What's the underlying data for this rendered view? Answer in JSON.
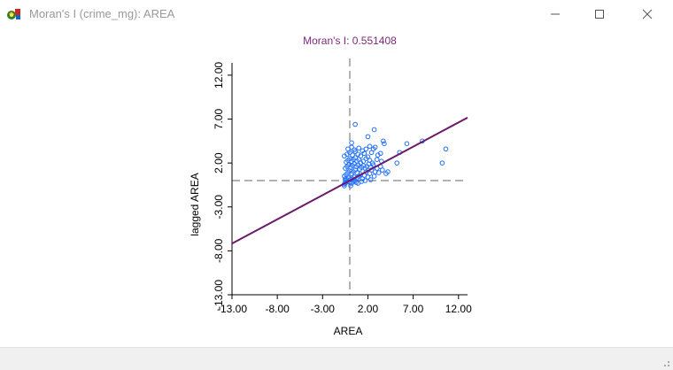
{
  "window": {
    "title": "Moran's I (crime_mg): AREA",
    "controls": [
      "minimize",
      "maximize",
      "close"
    ]
  },
  "colors": {
    "title": "#7a2a7a",
    "regression_line": "#6b1a6b",
    "points": "#1f6fff",
    "axis": "#000000",
    "reference_lines": "#666666"
  },
  "chart_data": {
    "type": "scatter",
    "title": "Moran's I: 0.551408",
    "xlabel": "AREA",
    "ylabel": "lagged AREA",
    "xlim": [
      -13,
      13
    ],
    "ylim": [
      -13,
      13
    ],
    "x_ticks": [
      "-13.00",
      "-8.00",
      "-3.00",
      "2.00",
      "7.00",
      "12.00"
    ],
    "y_ticks": [
      "-13.00",
      "-8.00",
      "-3.00",
      "2.00",
      "7.00",
      "12.00"
    ],
    "x_tick_values": [
      -13,
      -8,
      -3,
      2,
      7,
      12
    ],
    "y_tick_values": [
      -13,
      -8,
      -3,
      2,
      7,
      12
    ],
    "slope": 0.551408,
    "reference_lines": {
      "x": 0,
      "y": 0
    },
    "points": [
      [
        -0.6,
        -0.4
      ],
      [
        -0.5,
        -0.3
      ],
      [
        -0.4,
        -0.2
      ],
      [
        -0.3,
        0.1
      ],
      [
        -0.5,
        0.2
      ],
      [
        -0.2,
        -0.1
      ],
      [
        -0.1,
        0.3
      ],
      [
        0.0,
        -0.2
      ],
      [
        0.1,
        0.1
      ],
      [
        0.2,
        -0.3
      ],
      [
        0.3,
        0.2
      ],
      [
        0.4,
        -0.1
      ],
      [
        0.5,
        0.4
      ],
      [
        0.6,
        0.0
      ],
      [
        0.7,
        -0.2
      ],
      [
        0.8,
        0.3
      ],
      [
        -0.6,
        0.5
      ],
      [
        -0.4,
        0.7
      ],
      [
        -0.2,
        0.9
      ],
      [
        0.0,
        1.1
      ],
      [
        0.2,
        0.8
      ],
      [
        0.4,
        1.0
      ],
      [
        0.6,
        1.2
      ],
      [
        0.8,
        0.9
      ],
      [
        1.0,
        0.5
      ],
      [
        1.2,
        0.7
      ],
      [
        1.4,
        0.2
      ],
      [
        1.6,
        0.6
      ],
      [
        1.8,
        1.0
      ],
      [
        2.0,
        0.4
      ],
      [
        2.2,
        0.8
      ],
      [
        2.4,
        1.2
      ],
      [
        -0.5,
        1.4
      ],
      [
        -0.3,
        1.6
      ],
      [
        -0.1,
        1.8
      ],
      [
        0.1,
        1.5
      ],
      [
        0.3,
        1.7
      ],
      [
        0.5,
        1.9
      ],
      [
        0.7,
        1.6
      ],
      [
        0.9,
        1.8
      ],
      [
        1.1,
        1.3
      ],
      [
        1.3,
        1.5
      ],
      [
        1.5,
        1.7
      ],
      [
        1.7,
        1.4
      ],
      [
        1.9,
        1.6
      ],
      [
        2.1,
        1.9
      ],
      [
        2.3,
        1.5
      ],
      [
        2.6,
        1.8
      ],
      [
        -0.4,
        2.1
      ],
      [
        -0.2,
        2.3
      ],
      [
        0.0,
        2.5
      ],
      [
        0.2,
        2.2
      ],
      [
        0.4,
        2.4
      ],
      [
        0.6,
        2.6
      ],
      [
        0.8,
        2.2
      ],
      [
        1.0,
        2.4
      ],
      [
        1.2,
        2.0
      ],
      [
        1.5,
        2.2
      ],
      [
        1.8,
        2.5
      ],
      [
        2.2,
        2.3
      ],
      [
        -0.6,
        2.8
      ],
      [
        -0.3,
        3.0
      ],
      [
        0.0,
        3.2
      ],
      [
        0.3,
        2.9
      ],
      [
        0.6,
        3.3
      ],
      [
        0.9,
        3.0
      ],
      [
        1.2,
        2.8
      ],
      [
        1.6,
        3.1
      ],
      [
        2.0,
        2.7
      ],
      [
        2.4,
        3.2
      ],
      [
        -0.2,
        3.6
      ],
      [
        0.2,
        3.8
      ],
      [
        0.5,
        3.5
      ],
      [
        1.0,
        3.7
      ],
      [
        -0.5,
        0.0
      ],
      [
        -0.6,
        -0.6
      ],
      [
        0.1,
        -0.6
      ],
      [
        0.9,
        -0.3
      ],
      [
        1.3,
        -0.1
      ],
      [
        1.7,
        0.0
      ],
      [
        2.3,
        0.1
      ],
      [
        2.7,
        0.5
      ],
      [
        2.8,
        1.0
      ],
      [
        3.0,
        1.4
      ],
      [
        3.2,
        0.9
      ],
      [
        3.4,
        1.6
      ],
      [
        3.6,
        1.2
      ],
      [
        4.0,
        0.8
      ],
      [
        2.5,
        2.0
      ],
      [
        3.0,
        2.4
      ],
      [
        3.5,
        2.2
      ],
      [
        4.2,
        1.0
      ],
      [
        2.6,
        3.6
      ],
      [
        3.1,
        2.9
      ],
      [
        1.8,
        3.6
      ],
      [
        1.4,
        3.4
      ],
      [
        0.2,
        4.3
      ],
      [
        2.2,
        3.9
      ],
      [
        2.8,
        3.8
      ],
      [
        3.4,
        3.1
      ],
      [
        3.7,
        4.5
      ],
      [
        3.8,
        4.2
      ],
      [
        2.0,
        5.0
      ],
      [
        2.7,
        5.8
      ],
      [
        0.6,
        6.4
      ],
      [
        5.2,
        2.0
      ],
      [
        5.5,
        3.2
      ],
      [
        6.3,
        4.2
      ],
      [
        8.0,
        4.5
      ],
      [
        10.2,
        2.0
      ],
      [
        10.6,
        3.6
      ]
    ]
  }
}
